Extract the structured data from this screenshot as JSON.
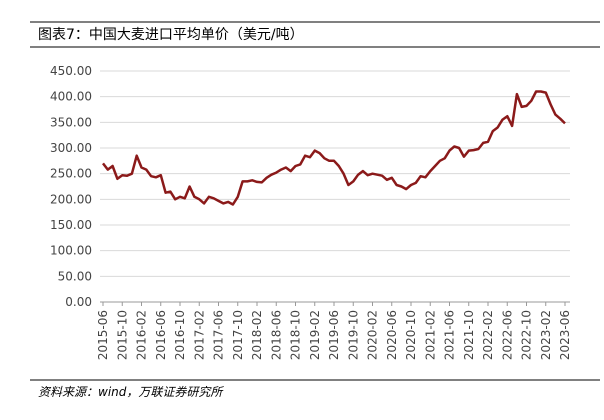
{
  "title": "图表7：中国大麦进口平均单价（美元/吨）",
  "source": "资料来源：wind，万联证券研究所",
  "chart_data": {
    "type": "line",
    "categories": [
      "2015-06",
      null,
      null,
      null,
      "2015-10",
      null,
      null,
      null,
      "2016-02",
      null,
      null,
      null,
      "2016-06",
      null,
      null,
      null,
      "2016-10",
      null,
      null,
      null,
      "2017-02",
      null,
      null,
      null,
      "2017-06",
      null,
      null,
      null,
      "2017-10",
      null,
      null,
      null,
      "2018-02",
      null,
      null,
      null,
      "2018-06",
      null,
      null,
      null,
      "2018-10",
      null,
      null,
      null,
      "2019-02",
      null,
      null,
      null,
      "2019-06",
      null,
      null,
      null,
      "2019-10",
      null,
      null,
      null,
      "2020-02",
      null,
      null,
      null,
      "2020-06",
      null,
      null,
      null,
      "2020-10",
      null,
      null,
      null,
      "2021-02",
      null,
      null,
      null,
      "2021-06",
      null,
      null,
      null,
      "2021-10",
      null,
      null,
      null,
      "2022-02",
      null,
      null,
      null,
      "2022-06",
      null,
      null,
      null,
      "2022-10",
      null,
      null,
      null,
      "2023-02",
      null,
      null,
      null,
      "2023-06"
    ],
    "values": [
      270,
      258,
      265,
      240,
      247,
      246,
      250,
      285,
      262,
      258,
      245,
      243,
      247,
      213,
      215,
      200,
      205,
      202,
      225,
      205,
      200,
      192,
      205,
      202,
      197,
      192,
      195,
      190,
      205,
      235,
      235,
      237,
      234,
      233,
      242,
      248,
      252,
      258,
      262,
      255,
      265,
      268,
      285,
      282,
      295,
      290,
      280,
      275,
      275,
      265,
      250,
      228,
      235,
      248,
      255,
      247,
      250,
      248,
      246,
      238,
      242,
      228,
      225,
      220,
      228,
      232,
      245,
      243,
      255,
      265,
      275,
      280,
      295,
      303,
      300,
      283,
      295,
      296,
      298,
      310,
      312,
      333,
      340,
      355,
      362,
      343,
      405,
      380,
      382,
      392,
      410,
      410,
      408,
      385,
      365,
      357,
      348
    ],
    "color": "#8b1a1a",
    "ylim": [
      0,
      450
    ],
    "yticks": [
      {
        "value": 0,
        "label": "0.00"
      },
      {
        "value": 50,
        "label": "50.00"
      },
      {
        "value": 100,
        "label": "100.00"
      },
      {
        "value": 150,
        "label": "150.00"
      },
      {
        "value": 200,
        "label": "200.00"
      },
      {
        "value": 250,
        "label": "250.00"
      },
      {
        "value": 300,
        "label": "300.00"
      },
      {
        "value": 350,
        "label": "350.00"
      },
      {
        "value": 400,
        "label": "400.00"
      },
      {
        "value": 450,
        "label": "450.00"
      }
    ],
    "grid": true
  }
}
